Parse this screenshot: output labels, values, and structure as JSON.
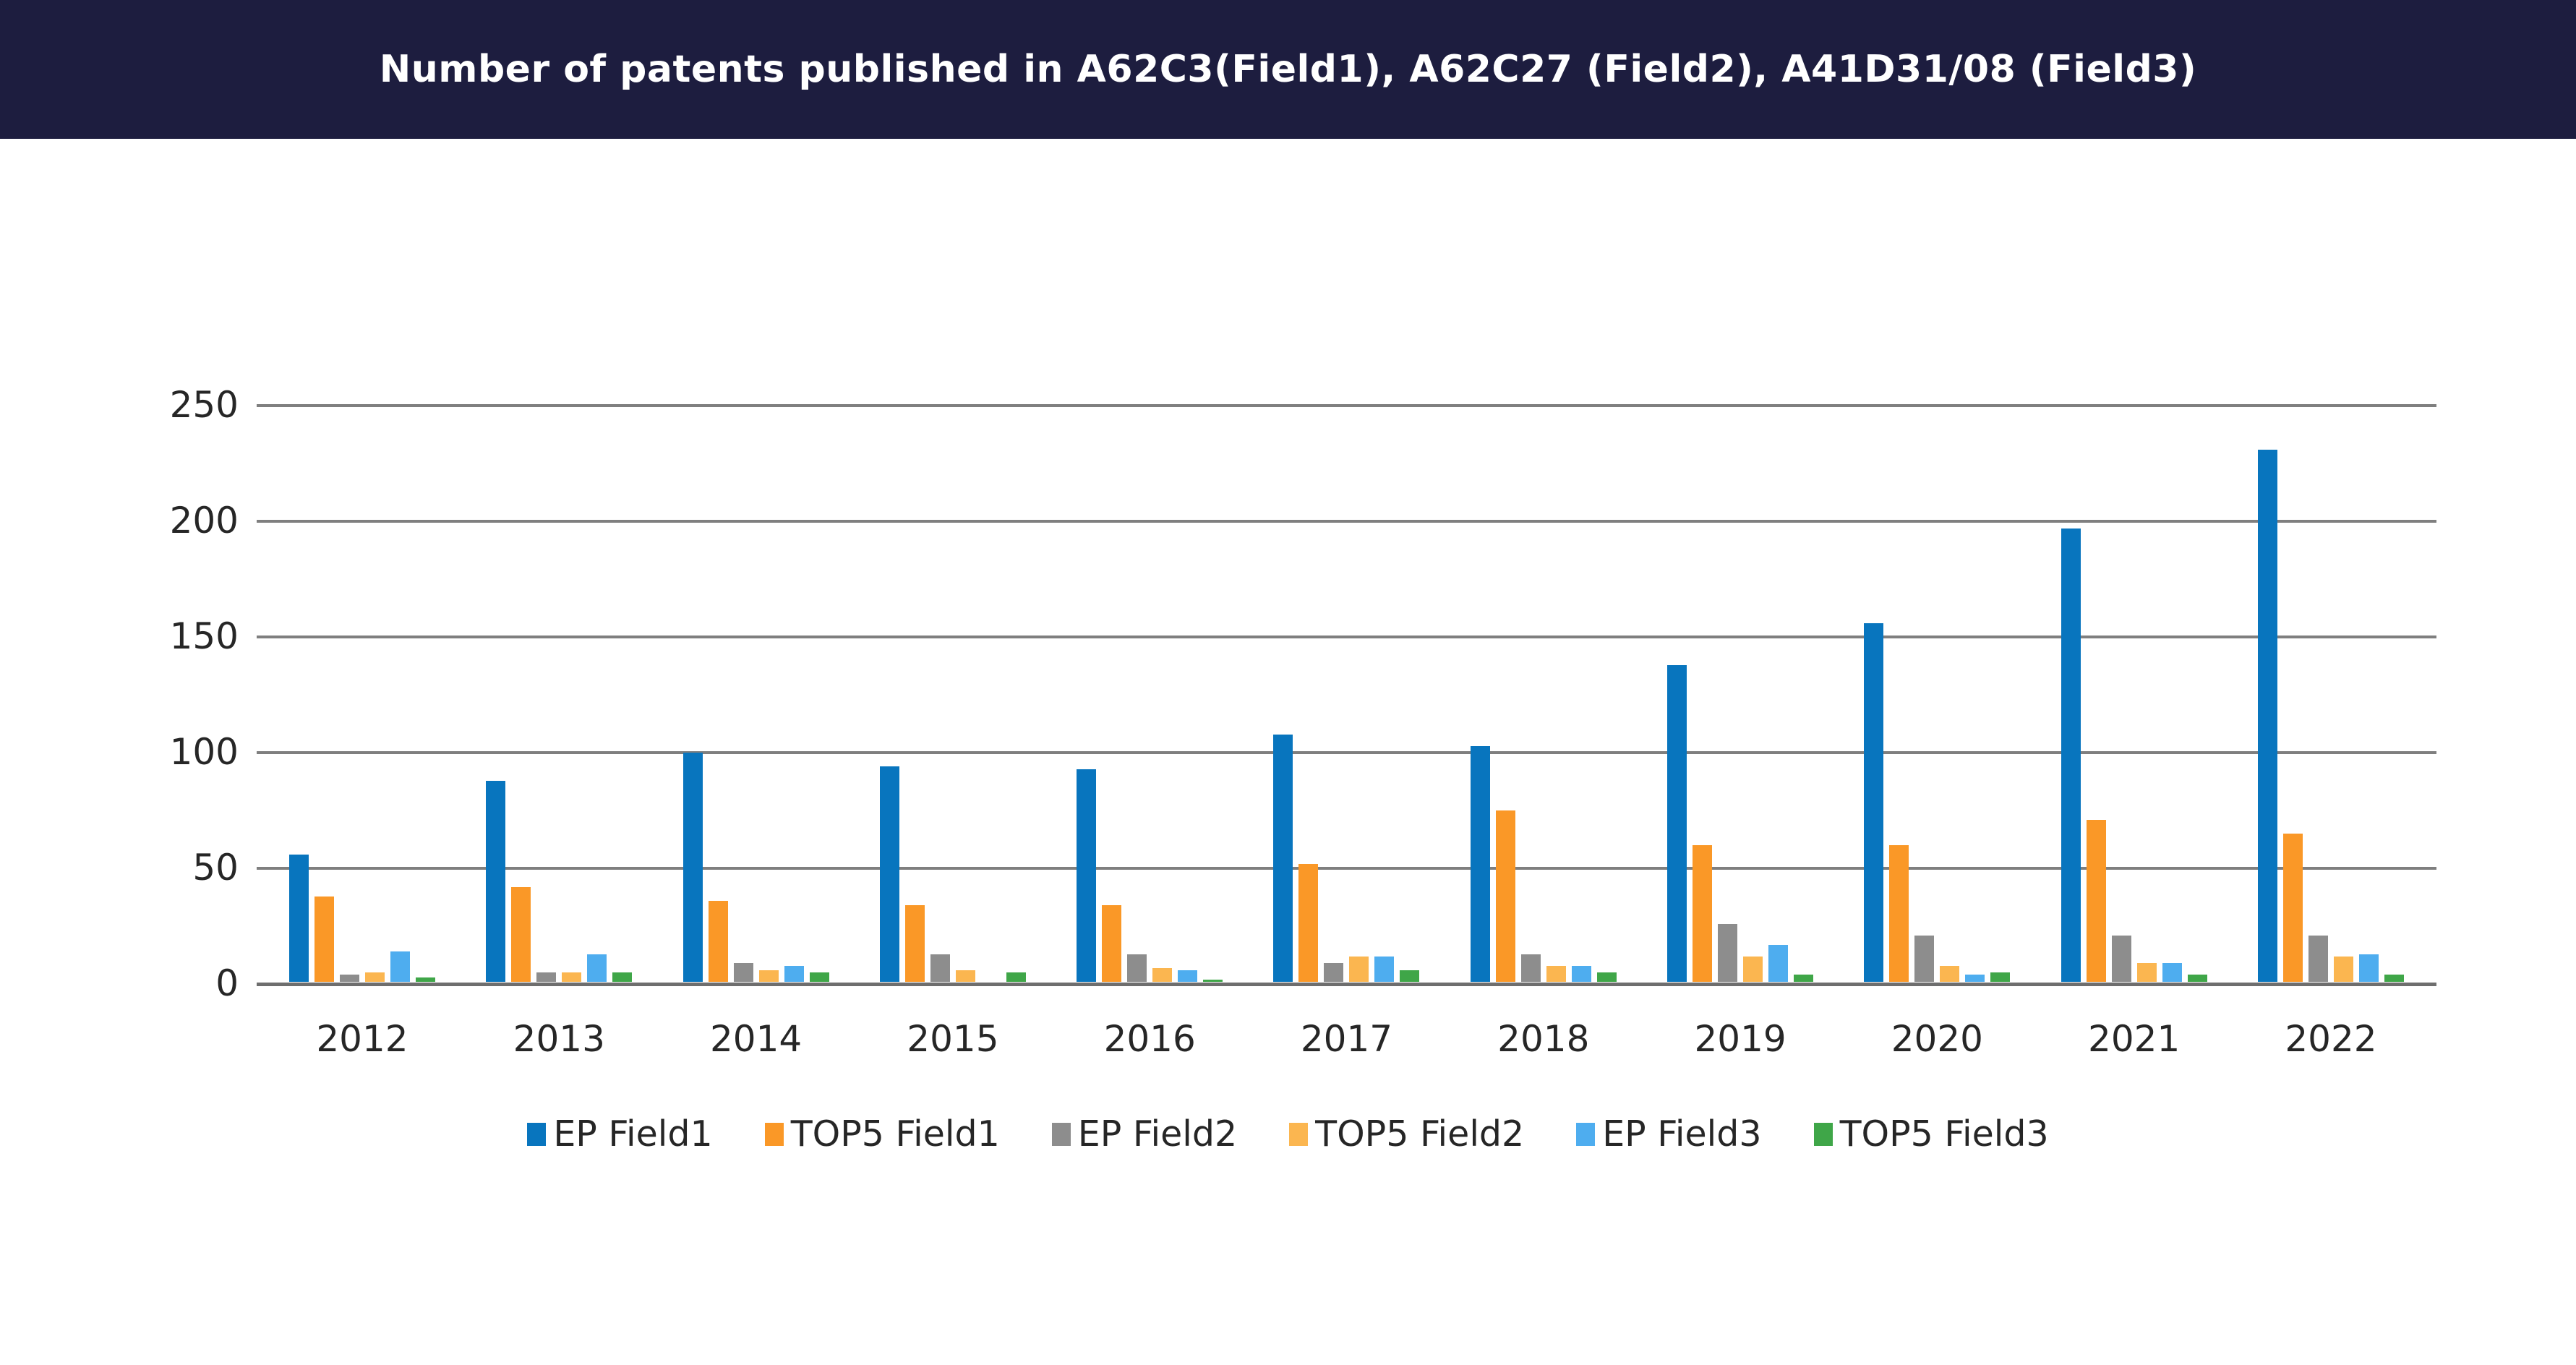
{
  "header": {
    "title": "Number of patents published in A62C3(Field1), A62C27 (Field2), A41D31/08 (Field3)"
  },
  "chart_data": {
    "type": "bar",
    "title": "Number of patents published in A62C3(Field1), A62C27 (Field2), A41D31/08 (Field3)",
    "categories": [
      "2012",
      "2013",
      "2014",
      "2015",
      "2016",
      "2017",
      "2018",
      "2019",
      "2020",
      "2021",
      "2022"
    ],
    "series": [
      {
        "name": "EP Field1",
        "color": "#0875BE",
        "values": [
          55,
          87,
          99,
          93,
          92,
          107,
          102,
          137,
          155,
          196,
          230
        ]
      },
      {
        "name": "TOP5 Field1",
        "color": "#FA9827",
        "values": [
          37,
          41,
          35,
          33,
          33,
          51,
          74,
          59,
          59,
          70,
          64
        ]
      },
      {
        "name": "EP Field2",
        "color": "#8D8D8D",
        "values": [
          3,
          4,
          8,
          12,
          12,
          8,
          12,
          25,
          20,
          20,
          20
        ]
      },
      {
        "name": "TOP5 Field2",
        "color": "#FBB650",
        "values": [
          4,
          4,
          5,
          5,
          6,
          11,
          7,
          11,
          7,
          8,
          11
        ]
      },
      {
        "name": "EP Field3",
        "color": "#4EADEF",
        "values": [
          13,
          12,
          7,
          0,
          5,
          11,
          7,
          16,
          3,
          8,
          12
        ]
      },
      {
        "name": "TOP5 Field3",
        "color": "#3FA648",
        "values": [
          2,
          4,
          4,
          4,
          1,
          5,
          4,
          3,
          4,
          3,
          3
        ]
      }
    ],
    "y_axis": {
      "ticks": [
        0,
        50,
        100,
        150,
        200,
        250
      ],
      "range": [
        0,
        250
      ],
      "grid": true
    },
    "xlabel": "",
    "ylabel": "",
    "legend_position": "bottom"
  }
}
